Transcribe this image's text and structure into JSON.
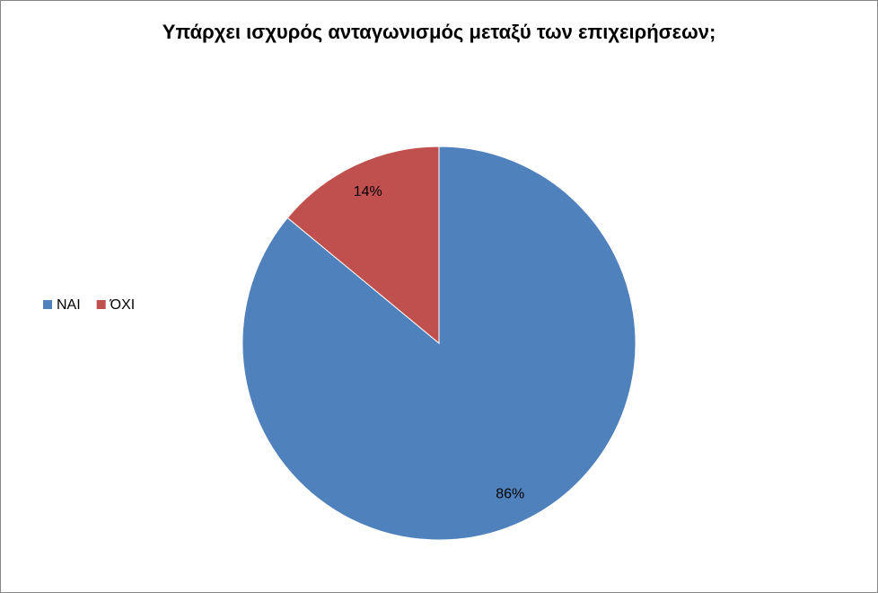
{
  "chart_data": {
    "type": "pie",
    "title": "Υπάρχει ισχυρός ανταγωνισμός μεταξύ των επιχειρήσεων;",
    "categories": [
      "ΝΑΙ",
      "ΌΧΙ"
    ],
    "values": [
      86,
      14
    ],
    "value_labels": [
      "86%",
      "14%"
    ],
    "colors": [
      "#4f81bd",
      "#c0504d"
    ],
    "legend": "left"
  }
}
